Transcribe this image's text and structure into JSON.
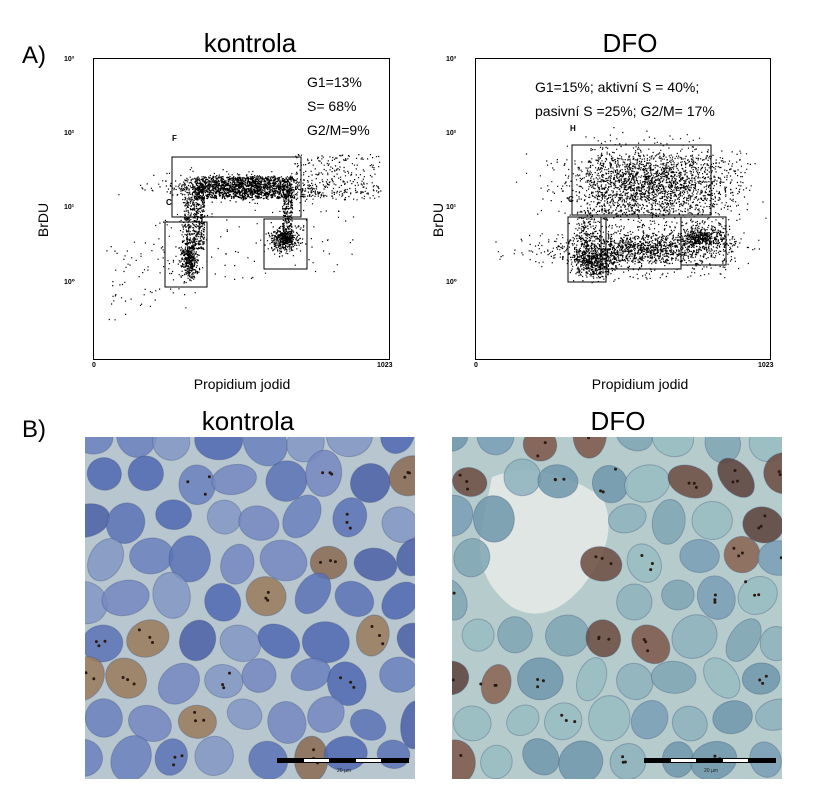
{
  "panel_a_label": "A)",
  "panel_b_label": "B)",
  "plots": [
    {
      "title": "kontrola",
      "ylabel": "BrDU",
      "xlabel": "Propidium jodid",
      "x_ticks": [
        "0",
        "1023"
      ],
      "y_ticks": [
        "10³",
        "10²",
        "10¹",
        "10⁰"
      ],
      "gate_labels": [
        "F",
        "C"
      ],
      "stats": [
        "G1=13%",
        "S= 68%",
        "G2/M=9%"
      ]
    },
    {
      "title": "DFO",
      "ylabel": "BrDU",
      "xlabel": "Propidium jodid",
      "x_ticks": [
        "0",
        "1023"
      ],
      "y_ticks": [
        "10³",
        "10²",
        "10¹",
        "10⁰"
      ],
      "gate_labels": [
        "H",
        "C"
      ],
      "stats": [
        "G1=15%; aktivní S = 40%;",
        "pasivní S =25%; G2/M= 17%"
      ]
    }
  ],
  "micrographs": [
    {
      "title": "kontrola",
      "scale_label": "20 µm"
    },
    {
      "title": "DFO",
      "scale_label": "20 µm"
    }
  ],
  "colors": {
    "dots": "#000000",
    "tissue_bg": "#b9c8cc",
    "nucleus_blue": "#5a6fae",
    "nucleus_brown": "#7a5a4a"
  }
}
